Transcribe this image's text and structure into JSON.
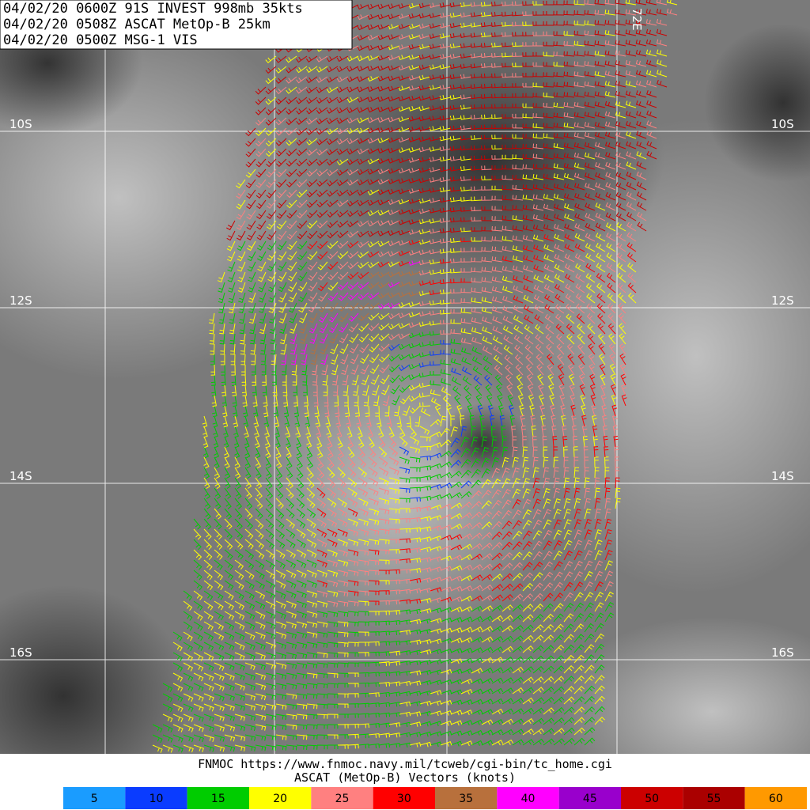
{
  "header": {
    "lines": [
      "04/02/20 0600Z  91S INVEST 998mb 35kts",
      "04/02/20 0508Z  ASCAT MetOp-B 25km",
      "04/02/20 0500Z  MSG-1 VIS"
    ]
  },
  "map": {
    "lat_labels": [
      "10S",
      "12S",
      "14S",
      "16S"
    ],
    "lon_label": "72E"
  },
  "footer": {
    "source": "FNMOC https://www.fnmoc.navy.mil/tcweb/cgi-bin/tc_home.cgi",
    "legend_title": "ASCAT (MetOp-B) Vectors (knots)"
  },
  "legend": [
    {
      "label": "5",
      "color": "#1a9cff"
    },
    {
      "label": "10",
      "color": "#0a3cff"
    },
    {
      "label": "15",
      "color": "#00cc00"
    },
    {
      "label": "20",
      "color": "#ffff00"
    },
    {
      "label": "25",
      "color": "#ff8080"
    },
    {
      "label": "30",
      "color": "#ff0000"
    },
    {
      "label": "35",
      "color": "#b8703c"
    },
    {
      "label": "40",
      "color": "#ff00ff"
    },
    {
      "label": "45",
      "color": "#9900cc"
    },
    {
      "label": "50",
      "color": "#cc0000"
    },
    {
      "label": "55",
      "color": "#aa0000"
    },
    {
      "label": "60",
      "color": "#ff9900"
    }
  ]
}
